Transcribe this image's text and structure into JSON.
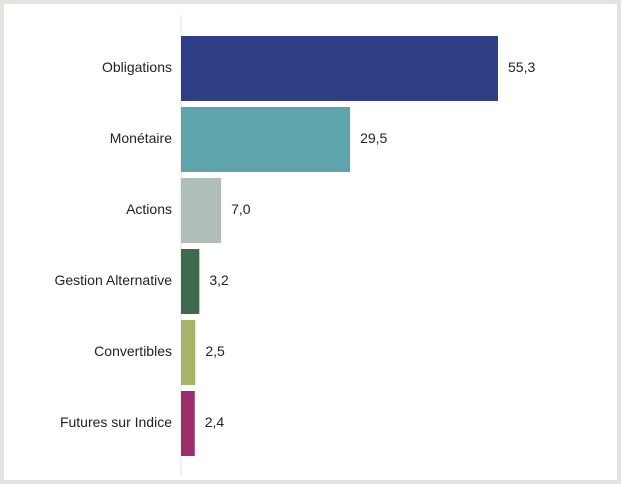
{
  "chart_data": {
    "type": "barh",
    "categories": [
      "Obligations",
      "Monétaire",
      "Actions",
      "Gestion Alternative",
      "Convertibles",
      "Futures sur Indice"
    ],
    "values": [
      55.3,
      29.5,
      7.0,
      3.2,
      2.5,
      2.4
    ],
    "value_labels": [
      "55,3",
      "29,5",
      "7,0",
      "3,2",
      "2,5",
      "2,4"
    ],
    "colors": [
      "#2e3f85",
      "#5fa3ad",
      "#b0c0b8",
      "#3e6b4d",
      "#a8b46a",
      "#9c2d68"
    ]
  }
}
